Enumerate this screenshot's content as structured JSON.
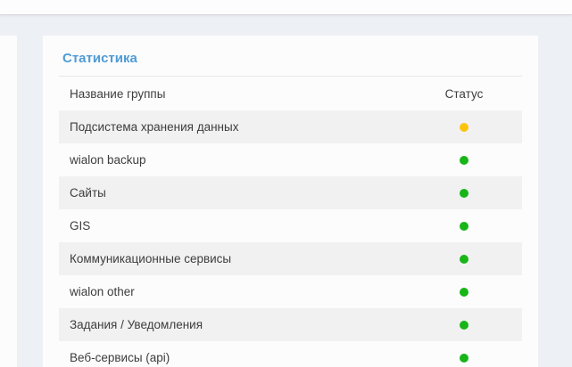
{
  "page": {
    "title": "Статистика"
  },
  "colors": {
    "accent_blue": "#4f9bd5",
    "ok": "#17b517",
    "warning": "#fdc40e",
    "stripe": "#f1f1f2",
    "background": "#edf0f5",
    "card": "#fcfcfd",
    "text": "#3d3d3d"
  },
  "table": {
    "columns": {
      "name": "Название группы",
      "status": "Статус"
    },
    "rows": [
      {
        "label": "Подсистема хранения данных",
        "status": "warning"
      },
      {
        "label": "wialon backup",
        "status": "ok"
      },
      {
        "label": "Сайты",
        "status": "ok"
      },
      {
        "label": "GIS",
        "status": "ok"
      },
      {
        "label": "Коммуникационные сервисы",
        "status": "ok"
      },
      {
        "label": "wialon other",
        "status": "ok"
      },
      {
        "label": "Задания / Уведомления",
        "status": "ok"
      },
      {
        "label": "Веб-сервисы (api)",
        "status": "ok"
      }
    ]
  }
}
